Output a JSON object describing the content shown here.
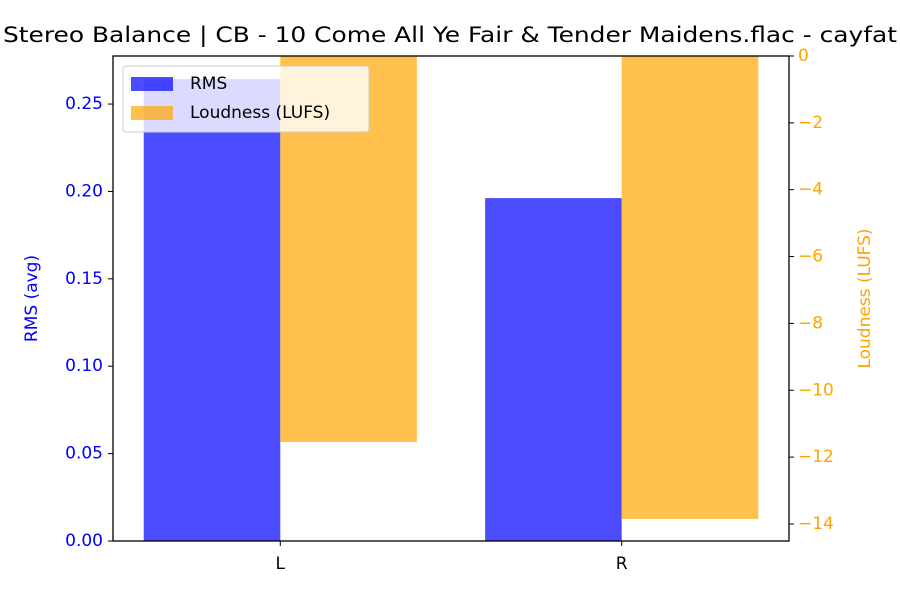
{
  "chart_data": {
    "type": "bar",
    "title": "Stereo Balance | CB - 10 Come All Ye Fair & Tender Maidens.flac - cayfat",
    "categories": [
      "L",
      "R"
    ],
    "xlim": [
      -0.49,
      1.49
    ],
    "ylabel": "RMS (avg)",
    "y2label": "Loudness (LUFS)",
    "ylabel_color": "#0000ff",
    "y2label_color": "#ffa500",
    "ylim": [
      0,
      0.2775
    ],
    "yticks": [
      {
        "value": 0,
        "label": "0.00"
      },
      {
        "value": 0.05,
        "label": "0.05"
      },
      {
        "value": 0.1,
        "label": "0.10"
      },
      {
        "value": 0.15,
        "label": "0.15"
      },
      {
        "value": 0.2,
        "label": "0.20"
      },
      {
        "value": 0.25,
        "label": "0.25"
      }
    ],
    "y2lim": [
      -14.51,
      0
    ],
    "y2ticks": [
      0,
      {
        "value": -2,
        "label": "−2"
      },
      {
        "value": -4,
        "label": "−4"
      },
      {
        "value": -6,
        "label": "−6"
      },
      {
        "value": -8,
        "label": "−8"
      },
      {
        "value": -10,
        "label": "−10"
      },
      {
        "value": -12,
        "label": "−12"
      },
      {
        "value": -14,
        "label": "−14"
      }
    ],
    "bar_width": 0.4,
    "opacity": 0.7,
    "legend": "upper left",
    "series": [
      {
        "name": "RMS",
        "color": "#0000ff",
        "values": [
          0.2643,
          0.1962
        ]
      },
      {
        "name": "Loudness (LUFS)",
        "color": "#ffa500",
        "axis": "y2",
        "values": [
          -11.55,
          -13.85
        ]
      }
    ]
  }
}
